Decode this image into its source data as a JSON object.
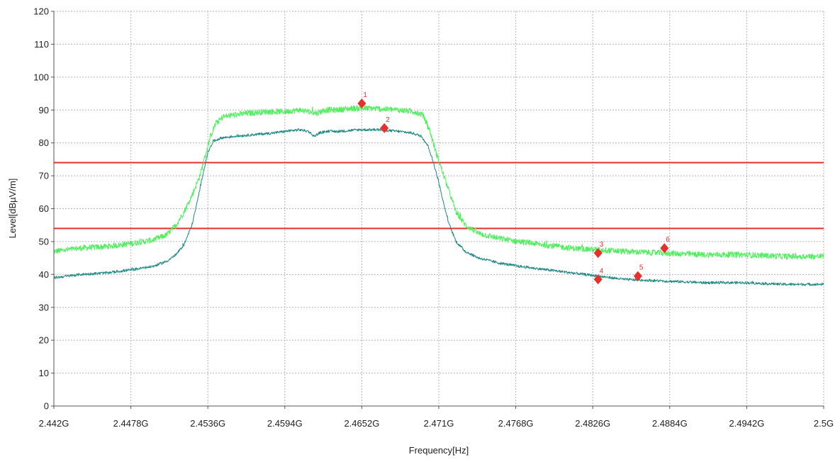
{
  "chart_data": {
    "type": "line",
    "title": "",
    "xlabel": "Frequency[Hz]",
    "ylabel": "Level[dBµV/m]",
    "xlim": [
      2.442,
      2.5
    ],
    "ylim": [
      0,
      120
    ],
    "grid": true,
    "x_ticks": [
      2.442,
      2.4478,
      2.4536,
      2.4594,
      2.4652,
      2.471,
      2.4768,
      2.4826,
      2.4884,
      2.4942,
      2.5
    ],
    "x_tick_labels": [
      "2.442G",
      "2.4478G",
      "2.4536G",
      "2.4594G",
      "2.4652G",
      "2.471G",
      "2.4768G",
      "2.4826G",
      "2.4884G",
      "2.4942G",
      "2.5G"
    ],
    "y_ticks": [
      0,
      10,
      20,
      30,
      40,
      50,
      60,
      70,
      80,
      90,
      100,
      110,
      120
    ],
    "y_tick_labels": [
      "0",
      "10",
      "20",
      "30",
      "40",
      "50",
      "60",
      "70",
      "80",
      "90",
      "100",
      "110",
      "120"
    ],
    "limit_lines": [
      {
        "value": 74,
        "color": "#e8302a"
      },
      {
        "value": 54,
        "color": "#e8302a"
      }
    ],
    "series": [
      {
        "color": "#4cf05a",
        "noise": 0.9,
        "x": [
          2.442,
          2.444,
          2.446,
          2.448,
          2.4495,
          2.4505,
          2.4512,
          2.4518,
          2.4524,
          2.453,
          2.4534,
          2.4538,
          2.4542,
          2.4548,
          2.4556,
          2.4566,
          2.458,
          2.4594,
          2.4605,
          2.4612,
          2.4618,
          2.4624,
          2.4632,
          2.4645,
          2.466,
          2.468,
          2.4692,
          2.4698,
          2.4703,
          2.4708,
          2.4713,
          2.4718,
          2.4723,
          2.473,
          2.474,
          2.4755,
          2.477,
          2.479,
          2.481,
          2.483,
          2.485,
          2.488,
          2.491,
          2.494,
          2.497,
          2.5
        ],
        "y": [
          47,
          48,
          48.5,
          49.5,
          50.5,
          52,
          55,
          59,
          64,
          70,
          76,
          82,
          86,
          88,
          88.5,
          89,
          89.5,
          89.5,
          90,
          89.5,
          89,
          90,
          90,
          90.5,
          90.5,
          90,
          89.5,
          88.5,
          84,
          77,
          71,
          65,
          59,
          55,
          52.5,
          51,
          50,
          49,
          48,
          47.5,
          47,
          46.5,
          46,
          46,
          45.5,
          45.5
        ]
      },
      {
        "color": "#1e8a84",
        "noise": 0.4,
        "x": [
          2.442,
          2.444,
          2.446,
          2.448,
          2.4495,
          2.4505,
          2.4512,
          2.4518,
          2.4524,
          2.4528,
          2.4532,
          2.4536,
          2.454,
          2.4546,
          2.4556,
          2.457,
          2.4585,
          2.4594,
          2.4605,
          2.4612,
          2.4616,
          2.462,
          2.4625,
          2.4635,
          2.465,
          2.4665,
          2.468,
          2.469,
          2.4697,
          2.4702,
          2.4706,
          2.471,
          2.4714,
          2.4718,
          2.4723,
          2.473,
          2.474,
          2.4755,
          2.477,
          2.479,
          2.481,
          2.483,
          2.485,
          2.488,
          2.491,
          2.494,
          2.497,
          2.5
        ],
        "y": [
          39,
          40,
          40.5,
          41.5,
          42.5,
          44,
          46,
          49,
          55,
          62,
          70,
          77,
          80.5,
          81.5,
          82,
          82.5,
          83,
          83.5,
          84,
          83.5,
          82,
          83,
          83.5,
          83.5,
          84,
          84,
          83.5,
          83,
          82,
          79,
          74,
          68,
          61,
          55,
          50,
          47,
          45,
          43.5,
          42.5,
          41.5,
          40.5,
          39.5,
          38.5,
          38,
          37.5,
          37.5,
          37,
          37
        ]
      }
    ],
    "markers": [
      {
        "label": "1",
        "x": 2.4652,
        "y": 92,
        "color": "#e8302a"
      },
      {
        "label": "2",
        "x": 2.4669,
        "y": 84.5,
        "color": "#e8302a"
      },
      {
        "label": "3",
        "x": 2.483,
        "y": 46.5,
        "color": "#e8302a"
      },
      {
        "label": "4",
        "x": 2.483,
        "y": 38.5,
        "color": "#e8302a"
      },
      {
        "label": "5",
        "x": 2.486,
        "y": 39.5,
        "color": "#e8302a"
      },
      {
        "label": "6",
        "x": 2.488,
        "y": 48,
        "color": "#e8302a"
      }
    ]
  }
}
